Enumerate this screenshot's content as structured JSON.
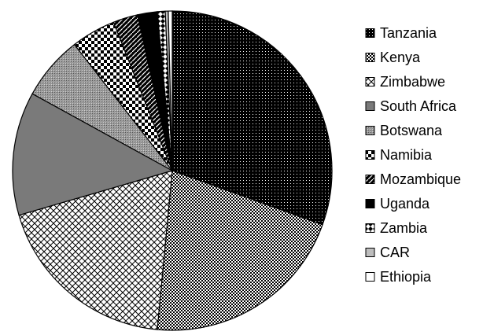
{
  "chart_data": {
    "type": "pie",
    "title": "",
    "legend_position": "right",
    "slices": [
      {
        "label": "Tanzania",
        "value": 30.5,
        "pattern": "dense-black-dots"
      },
      {
        "label": "Kenya",
        "value": 21.0,
        "pattern": "checker-fine"
      },
      {
        "label": "Zimbabwe",
        "value": 19.0,
        "pattern": "crosshatch-diagonal"
      },
      {
        "label": "South Africa",
        "value": 12.5,
        "pattern": "solid-gray"
      },
      {
        "label": "Botswana",
        "value": 6.5,
        "pattern": "dotted-gray"
      },
      {
        "label": "Namibia",
        "value": 4.5,
        "pattern": "checker-coarse"
      },
      {
        "label": "Mozambique",
        "value": 2.5,
        "pattern": "diagonal-stripes"
      },
      {
        "label": "Uganda",
        "value": 2.0,
        "pattern": "solid-black"
      },
      {
        "label": "Zambia",
        "value": 0.8,
        "pattern": "diamond"
      },
      {
        "label": "CAR",
        "value": 0.3,
        "pattern": "light-gray"
      },
      {
        "label": "Ethiopia",
        "value": 0.4,
        "pattern": "white"
      }
    ]
  }
}
